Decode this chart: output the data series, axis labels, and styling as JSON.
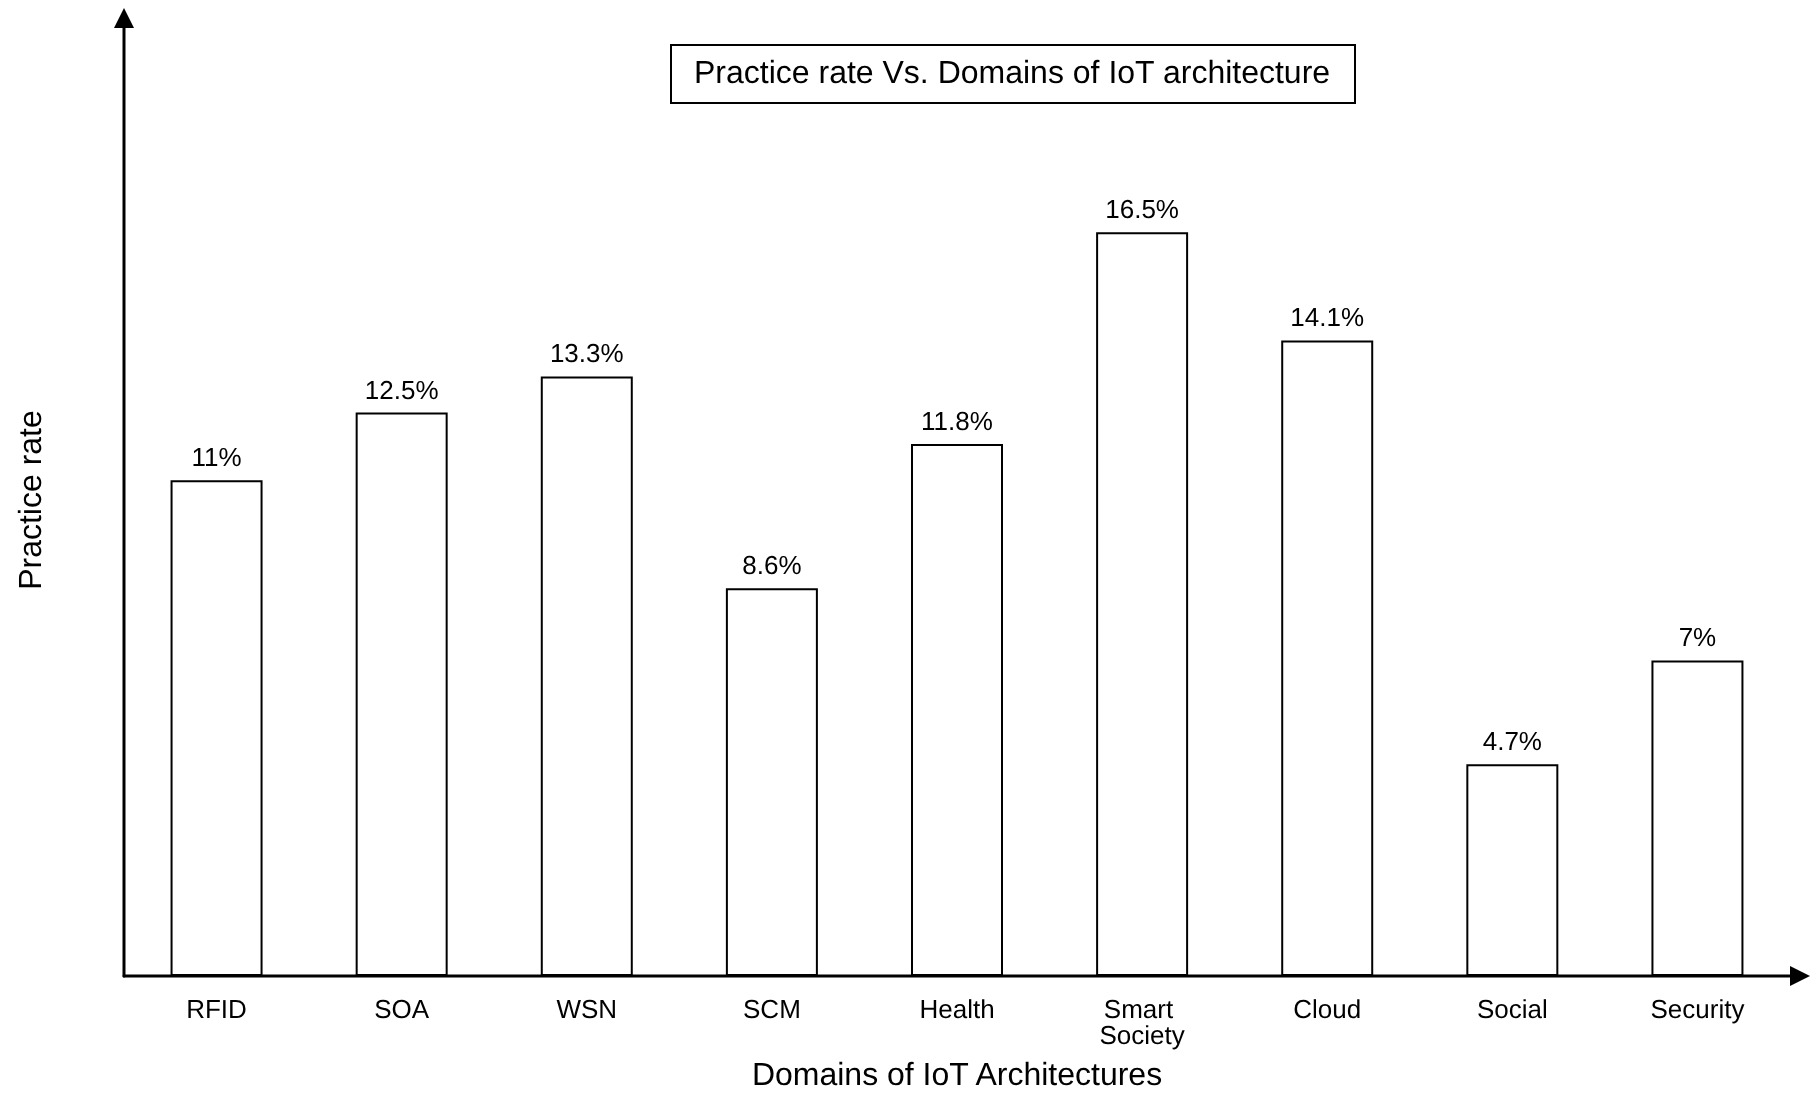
{
  "chart_data": {
    "type": "bar",
    "title": "Practice rate Vs. Domains of IoT architecture",
    "xlabel": "Domains of IoT Architectures",
    "ylabel": "Practice rate",
    "categories": [
      "RFID",
      "SOA",
      "WSN",
      "SCM",
      "Health",
      "Smart Society",
      "Cloud",
      "Social",
      "Security"
    ],
    "values": [
      11,
      12.5,
      13.3,
      8.6,
      11.8,
      16.5,
      14.1,
      4.7,
      7
    ],
    "value_labels": [
      "11%",
      "12.5%",
      "13.3%",
      "8.6%",
      "11.8%",
      "16.5%",
      "14.1%",
      "4.7%",
      "7%"
    ],
    "color": "#ffffff",
    "grid": false
  }
}
